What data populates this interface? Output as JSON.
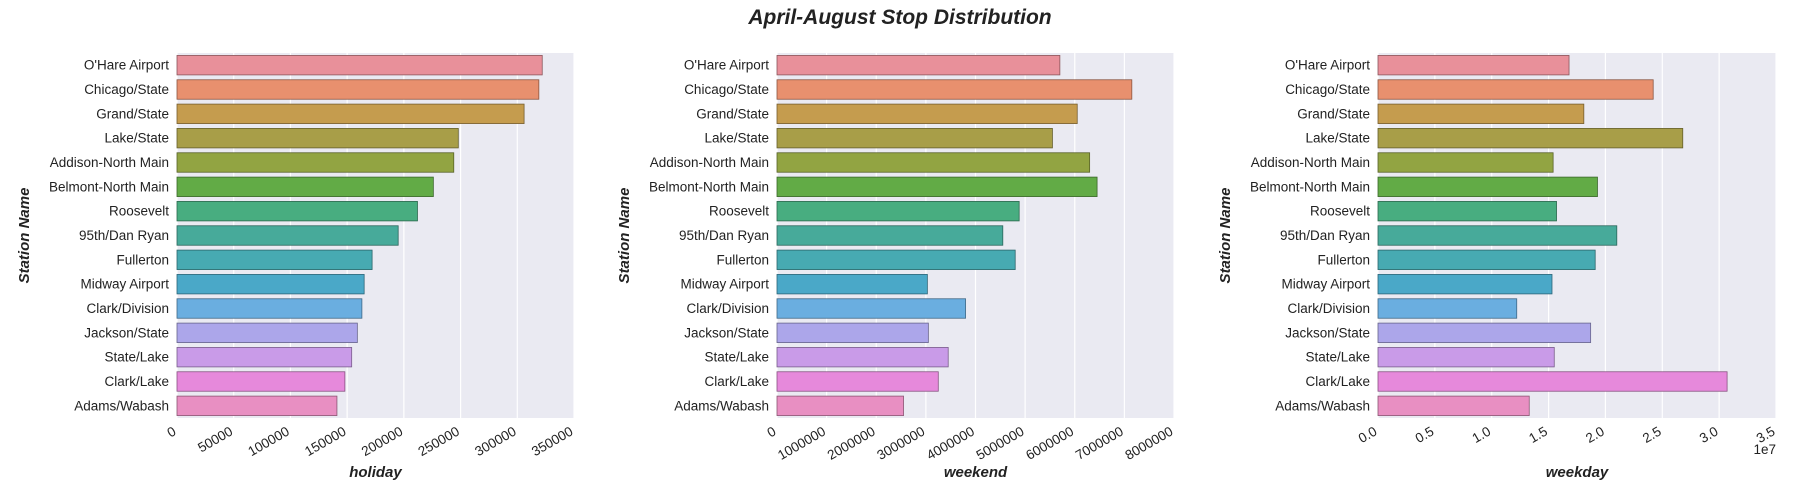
{
  "title": "April-August Stop Distribution",
  "palette": [
    "#e8909a",
    "#e8906e",
    "#c59c4e",
    "#a89e48",
    "#92a442",
    "#62ab46",
    "#48ad80",
    "#47aa9a",
    "#47aab2",
    "#4aa8c8",
    "#6aaee0",
    "#aca6ea",
    "#c99be8",
    "#e689db",
    "#e88fc2"
  ],
  "chart_data": [
    {
      "type": "bar",
      "orientation": "horizontal",
      "categories": [
        "O'Hare Airport",
        "Chicago/State",
        "Grand/State",
        "Lake/State",
        "Addison-North Main",
        "Belmont-North Main",
        "Roosevelt",
        "95th/Dan Ryan",
        "Fullerton",
        "Midway Airport",
        "Clark/Division",
        "Jackson/State",
        "State/Lake",
        "Clark/Lake",
        "Adams/Wabash"
      ],
      "values": [
        322000,
        319000,
        306000,
        248000,
        244000,
        226000,
        212000,
        195000,
        172000,
        165000,
        163000,
        159000,
        154000,
        148000,
        141000
      ],
      "xlabel": "holiday",
      "ylabel": "Station Name",
      "xlim": [
        0,
        350000
      ],
      "xticks": [
        0,
        50000,
        100000,
        150000,
        200000,
        250000,
        300000,
        350000
      ],
      "xtick_labels": [
        "0",
        "50000",
        "100000",
        "150000",
        "200000",
        "250000",
        "300000",
        "350000"
      ],
      "offset_text": "",
      "grid": true
    },
    {
      "type": "bar",
      "orientation": "horizontal",
      "categories": [
        "O'Hare Airport",
        "Chicago/State",
        "Grand/State",
        "Lake/State",
        "Addison-North Main",
        "Belmont-North Main",
        "Roosevelt",
        "95th/Dan Ryan",
        "Fullerton",
        "Midway Airport",
        "Clark/Division",
        "Jackson/State",
        "State/Lake",
        "Clark/Lake",
        "Adams/Wabash"
      ],
      "values": [
        5700000,
        7150000,
        6050000,
        5550000,
        6300000,
        6450000,
        4880000,
        4550000,
        4800000,
        3030000,
        3800000,
        3050000,
        3450000,
        3250000,
        2550000
      ],
      "xlabel": "weekend",
      "ylabel": "Station Name",
      "xlim": [
        0,
        8000000
      ],
      "xticks": [
        0,
        1000000,
        2000000,
        3000000,
        4000000,
        5000000,
        6000000,
        7000000,
        8000000
      ],
      "xtick_labels": [
        "0",
        "1000000",
        "2000000",
        "3000000",
        "4000000",
        "5000000",
        "6000000",
        "7000000",
        "8000000"
      ],
      "offset_text": "",
      "grid": true
    },
    {
      "type": "bar",
      "orientation": "horizontal",
      "categories": [
        "O'Hare Airport",
        "Chicago/State",
        "Grand/State",
        "Lake/State",
        "Addison-North Main",
        "Belmont-North Main",
        "Roosevelt",
        "95th/Dan Ryan",
        "Fullerton",
        "Midway Airport",
        "Clark/Division",
        "Jackson/State",
        "State/Lake",
        "Clark/Lake",
        "Adams/Wabash"
      ],
      "values": [
        16800000,
        24200000,
        18100000,
        26800000,
        15400000,
        19300000,
        15700000,
        21000000,
        19100000,
        15300000,
        12200000,
        18700000,
        15500000,
        30700000,
        13300000
      ],
      "xlabel": "weekday",
      "ylabel": "Station Name",
      "xlim": [
        0,
        35000000
      ],
      "xticks": [
        0,
        5000000,
        10000000,
        15000000,
        20000000,
        25000000,
        30000000,
        35000000
      ],
      "xtick_labels": [
        "0.0",
        "0.5",
        "1.0",
        "1.5",
        "2.0",
        "2.5",
        "3.0",
        "3.5"
      ],
      "offset_text": "1e7",
      "grid": true
    }
  ]
}
